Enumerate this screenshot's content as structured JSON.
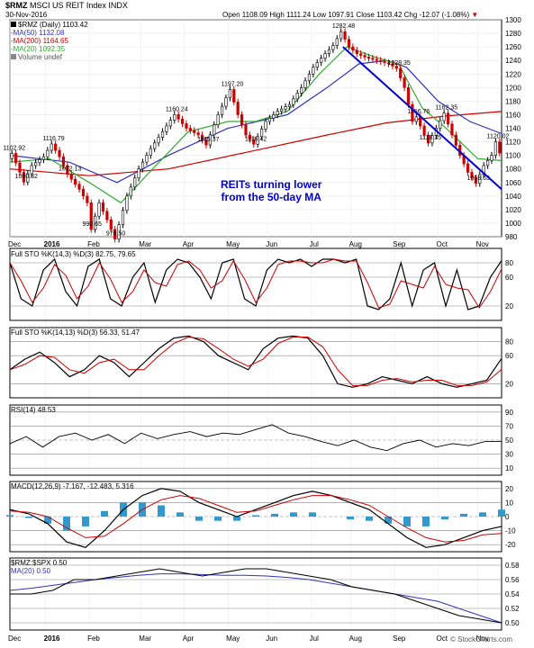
{
  "header": {
    "symbol": "$RMZ",
    "name": "MSCI US REIT Index",
    "exchange": "INDX",
    "date": "30-Nov-2016",
    "ohlc_text": "Open 1108.09  High 1111.24  Low 1097.91  Close 1103.42  Chg -12.07 (-1.08%)",
    "chg_marker": "▼",
    "watermark": "© StockCharts.com"
  },
  "legend": {
    "main": "$RMZ (Daily) 1103.42",
    "ma50": "MA(50) 1132.08",
    "ma200": "MA(200) 1164.65",
    "ma20": "MA(20) 1092.35",
    "volume": "Volume undef"
  },
  "annotation": [
    "REITs turning lower",
    "from the 50-day MA"
  ],
  "colors": {
    "price_up": "#000000",
    "price_down": "#cc0000",
    "ma50": "#3333bb",
    "ma200": "#cc0000",
    "ma20": "#33aa33",
    "trendline": "#0000cc",
    "annotation": "#0000cc",
    "macd_hist": "#3399cc"
  },
  "panels": {
    "sto1": {
      "label": "Full STO %K(14,3) %D(3) 82.75, 79.65",
      "ticks": [
        "80",
        "60",
        "20"
      ]
    },
    "sto2": {
      "label": "Full STO %K(14,13) %D(3) 56.33, 51.47",
      "ticks": [
        "80",
        "60",
        "20"
      ]
    },
    "rsi": {
      "label": "RSI(14) 48.53",
      "ticks": [
        "90",
        "70",
        "50",
        "30",
        "10"
      ]
    },
    "macd": {
      "label": "MACD(12,26,9) -7.167, -12.483, 5.316",
      "ticks": [
        "20",
        "10",
        "0",
        "-10",
        "-20"
      ]
    },
    "ratio": {
      "label": "$RMZ:$SPX 0.50",
      "ma_label": "MA(20) 0.50",
      "ticks": [
        "0.58",
        "0.56",
        "0.54",
        "0.52",
        "0.50"
      ]
    }
  },
  "chart_data": {
    "type": "line",
    "title": "$RMZ MSCI US REIT Index INDX",
    "x_labels": [
      "Dec",
      "2016",
      "Feb",
      "Mar",
      "Apr",
      "May",
      "Jun",
      "Jul",
      "Aug",
      "Sep",
      "Oct",
      "Nov"
    ],
    "ylim": [
      980,
      1300
    ],
    "y_ticks": [
      980,
      1000,
      1020,
      1040,
      1060,
      1080,
      1100,
      1120,
      1140,
      1160,
      1180,
      1200,
      1220,
      1240,
      1260,
      1280,
      1300
    ],
    "price_series": {
      "name": "$RMZ (Daily)",
      "points": [
        [
          0,
          1095
        ],
        [
          1,
          1102.92
        ],
        [
          3,
          1075
        ],
        [
          4,
          1060.82
        ],
        [
          6,
          1085
        ],
        [
          9,
          1098
        ],
        [
          11,
          1116.79
        ],
        [
          13,
          1098
        ],
        [
          15,
          1072.13
        ],
        [
          18,
          1050
        ],
        [
          20,
          1030
        ],
        [
          21,
          990.65
        ],
        [
          23,
          1030
        ],
        [
          25,
          1005
        ],
        [
          27,
          976.5
        ],
        [
          30,
          1040
        ],
        [
          33,
          1080
        ],
        [
          36,
          1110
        ],
        [
          39,
          1135
        ],
        [
          42,
          1160.24
        ],
        [
          45,
          1140
        ],
        [
          48,
          1130
        ],
        [
          50,
          1115.37
        ],
        [
          53,
          1160
        ],
        [
          56,
          1197.2
        ],
        [
          58,
          1160
        ],
        [
          60,
          1130
        ],
        [
          62,
          1116.42
        ],
        [
          65,
          1150
        ],
        [
          68,
          1165
        ],
        [
          71,
          1175
        ],
        [
          74,
          1200
        ],
        [
          77,
          1230
        ],
        [
          80,
          1250
        ],
        [
          82,
          1262
        ],
        [
          84,
          1282.48
        ],
        [
          86,
          1260
        ],
        [
          88,
          1250
        ],
        [
          90,
          1245
        ],
        [
          93,
          1240
        ],
        [
          96,
          1235
        ],
        [
          98,
          1228.35
        ],
        [
          100,
          1200
        ],
        [
          102,
          1150
        ],
        [
          103,
          1156.76
        ],
        [
          105,
          1130
        ],
        [
          106,
          1118.35
        ],
        [
          108,
          1140
        ],
        [
          110,
          1162.35
        ],
        [
          112,
          1130
        ],
        [
          114,
          1100
        ],
        [
          116,
          1075
        ],
        [
          118,
          1058.63
        ],
        [
          120,
          1085
        ],
        [
          122,
          1100
        ],
        [
          123,
          1120.02
        ],
        [
          124,
          1103.42
        ]
      ],
      "labels": [
        {
          "t": 1,
          "value": 1102.92
        },
        {
          "t": 4,
          "value": 1060.82
        },
        {
          "t": 11,
          "value": 1116.79
        },
        {
          "t": 15,
          "value": 1072.13
        },
        {
          "t": 21,
          "value": 990.65
        },
        {
          "t": 27,
          "value": 976.5
        },
        {
          "t": 42,
          "value": 1160.24
        },
        {
          "t": 50,
          "value": 1115.37
        },
        {
          "t": 56,
          "value": 1197.2
        },
        {
          "t": 62,
          "value": 1116.42
        },
        {
          "t": 84,
          "value": 1282.48
        },
        {
          "t": 98,
          "value": 1228.35
        },
        {
          "t": 103,
          "value": 1156.76
        },
        {
          "t": 106,
          "value": 1118.35
        },
        {
          "t": 110,
          "value": 1162.35
        },
        {
          "t": 118,
          "value": 1058.63
        },
        {
          "t": 123,
          "value": 1120.02
        }
      ]
    },
    "ma50": {
      "name": "MA(50)",
      "points": [
        [
          0,
          1100
        ],
        [
          15,
          1090
        ],
        [
          27,
          1060
        ],
        [
          40,
          1100
        ],
        [
          55,
          1140
        ],
        [
          70,
          1160
        ],
        [
          80,
          1200
        ],
        [
          88,
          1235
        ],
        [
          95,
          1240
        ],
        [
          100,
          1230
        ],
        [
          108,
          1180
        ],
        [
          116,
          1150
        ],
        [
          124,
          1132.08
        ]
      ]
    },
    "ma200": {
      "name": "MA(200)",
      "points": [
        [
          0,
          1080
        ],
        [
          20,
          1070
        ],
        [
          40,
          1080
        ],
        [
          60,
          1105
        ],
        [
          80,
          1130
        ],
        [
          95,
          1148
        ],
        [
          110,
          1158
        ],
        [
          124,
          1164.65
        ]
      ]
    },
    "ma20": {
      "name": "MA(20)",
      "points": [
        [
          0,
          1090
        ],
        [
          10,
          1095
        ],
        [
          20,
          1060
        ],
        [
          28,
          1030
        ],
        [
          36,
          1080
        ],
        [
          45,
          1135
        ],
        [
          55,
          1150
        ],
        [
          62,
          1150
        ],
        [
          70,
          1165
        ],
        [
          78,
          1220
        ],
        [
          85,
          1260
        ],
        [
          92,
          1245
        ],
        [
          98,
          1235
        ],
        [
          104,
          1170
        ],
        [
          110,
          1140
        ],
        [
          118,
          1095
        ],
        [
          124,
          1092.35
        ]
      ]
    },
    "trendline": [
      [
        84,
        1260
      ],
      [
        124,
        1050
      ]
    ],
    "indicators": {
      "sto1": {
        "ylim": [
          0,
          100
        ],
        "k": [
          80,
          30,
          20,
          70,
          85,
          40,
          20,
          75,
          85,
          30,
          20,
          60,
          80,
          25,
          70,
          85,
          80,
          60,
          30,
          80,
          85,
          30,
          20,
          70,
          85,
          80,
          85,
          75,
          85,
          85,
          80,
          85,
          20,
          15,
          30,
          80,
          20,
          70,
          80,
          20,
          70,
          15,
          20,
          60,
          83
        ]
      },
      "sto2": {
        "ylim": [
          0,
          100
        ],
        "k": [
          40,
          55,
          65,
          50,
          30,
          40,
          60,
          50,
          30,
          50,
          70,
          85,
          88,
          80,
          60,
          50,
          40,
          70,
          85,
          88,
          85,
          60,
          20,
          15,
          20,
          30,
          25,
          20,
          30,
          20,
          15,
          20,
          25,
          56
        ]
      },
      "rsi": {
        "ylim": [
          0,
          100
        ],
        "v": [
          45,
          55,
          40,
          55,
          60,
          50,
          58,
          45,
          60,
          52,
          58,
          62,
          55,
          60,
          58,
          65,
          72,
          60,
          55,
          48,
          42,
          50,
          40,
          35,
          45,
          50,
          40,
          45,
          42,
          48,
          48
        ]
      },
      "macd": {
        "ylim": [
          -25,
          25
        ],
        "macd": [
          5,
          2,
          -5,
          -18,
          -22,
          -10,
          5,
          15,
          20,
          18,
          10,
          5,
          0,
          5,
          10,
          15,
          18,
          15,
          10,
          5,
          -5,
          -15,
          -22,
          -20,
          -15,
          -10,
          -7
        ],
        "signal": [
          4,
          3,
          0,
          -8,
          -15,
          -14,
          -5,
          5,
          12,
          15,
          13,
          8,
          3,
          4,
          8,
          12,
          15,
          15,
          12,
          8,
          0,
          -8,
          -15,
          -18,
          -17,
          -13,
          -12
        ],
        "hist": [
          1,
          -1,
          -5,
          -10,
          -7,
          4,
          10,
          10,
          8,
          3,
          -3,
          -3,
          -3,
          1,
          2,
          3,
          3,
          0,
          -2,
          -3,
          -5,
          -7,
          -7,
          -2,
          2,
          3,
          5
        ]
      },
      "ratio": {
        "ylim": [
          0.49,
          0.59
        ],
        "v": [
          0.54,
          0.54,
          0.545,
          0.56,
          0.56,
          0.565,
          0.57,
          0.575,
          0.57,
          0.565,
          0.57,
          0.575,
          0.575,
          0.57,
          0.565,
          0.56,
          0.55,
          0.545,
          0.54,
          0.53,
          0.52,
          0.51,
          0.505,
          0.5
        ],
        "ma": [
          0.545,
          0.548,
          0.552,
          0.556,
          0.56,
          0.563,
          0.566,
          0.568,
          0.568,
          0.567,
          0.566,
          0.566,
          0.565,
          0.563,
          0.56,
          0.555,
          0.55,
          0.545,
          0.54,
          0.535,
          0.53,
          0.52,
          0.51,
          0.5
        ]
      }
    }
  }
}
